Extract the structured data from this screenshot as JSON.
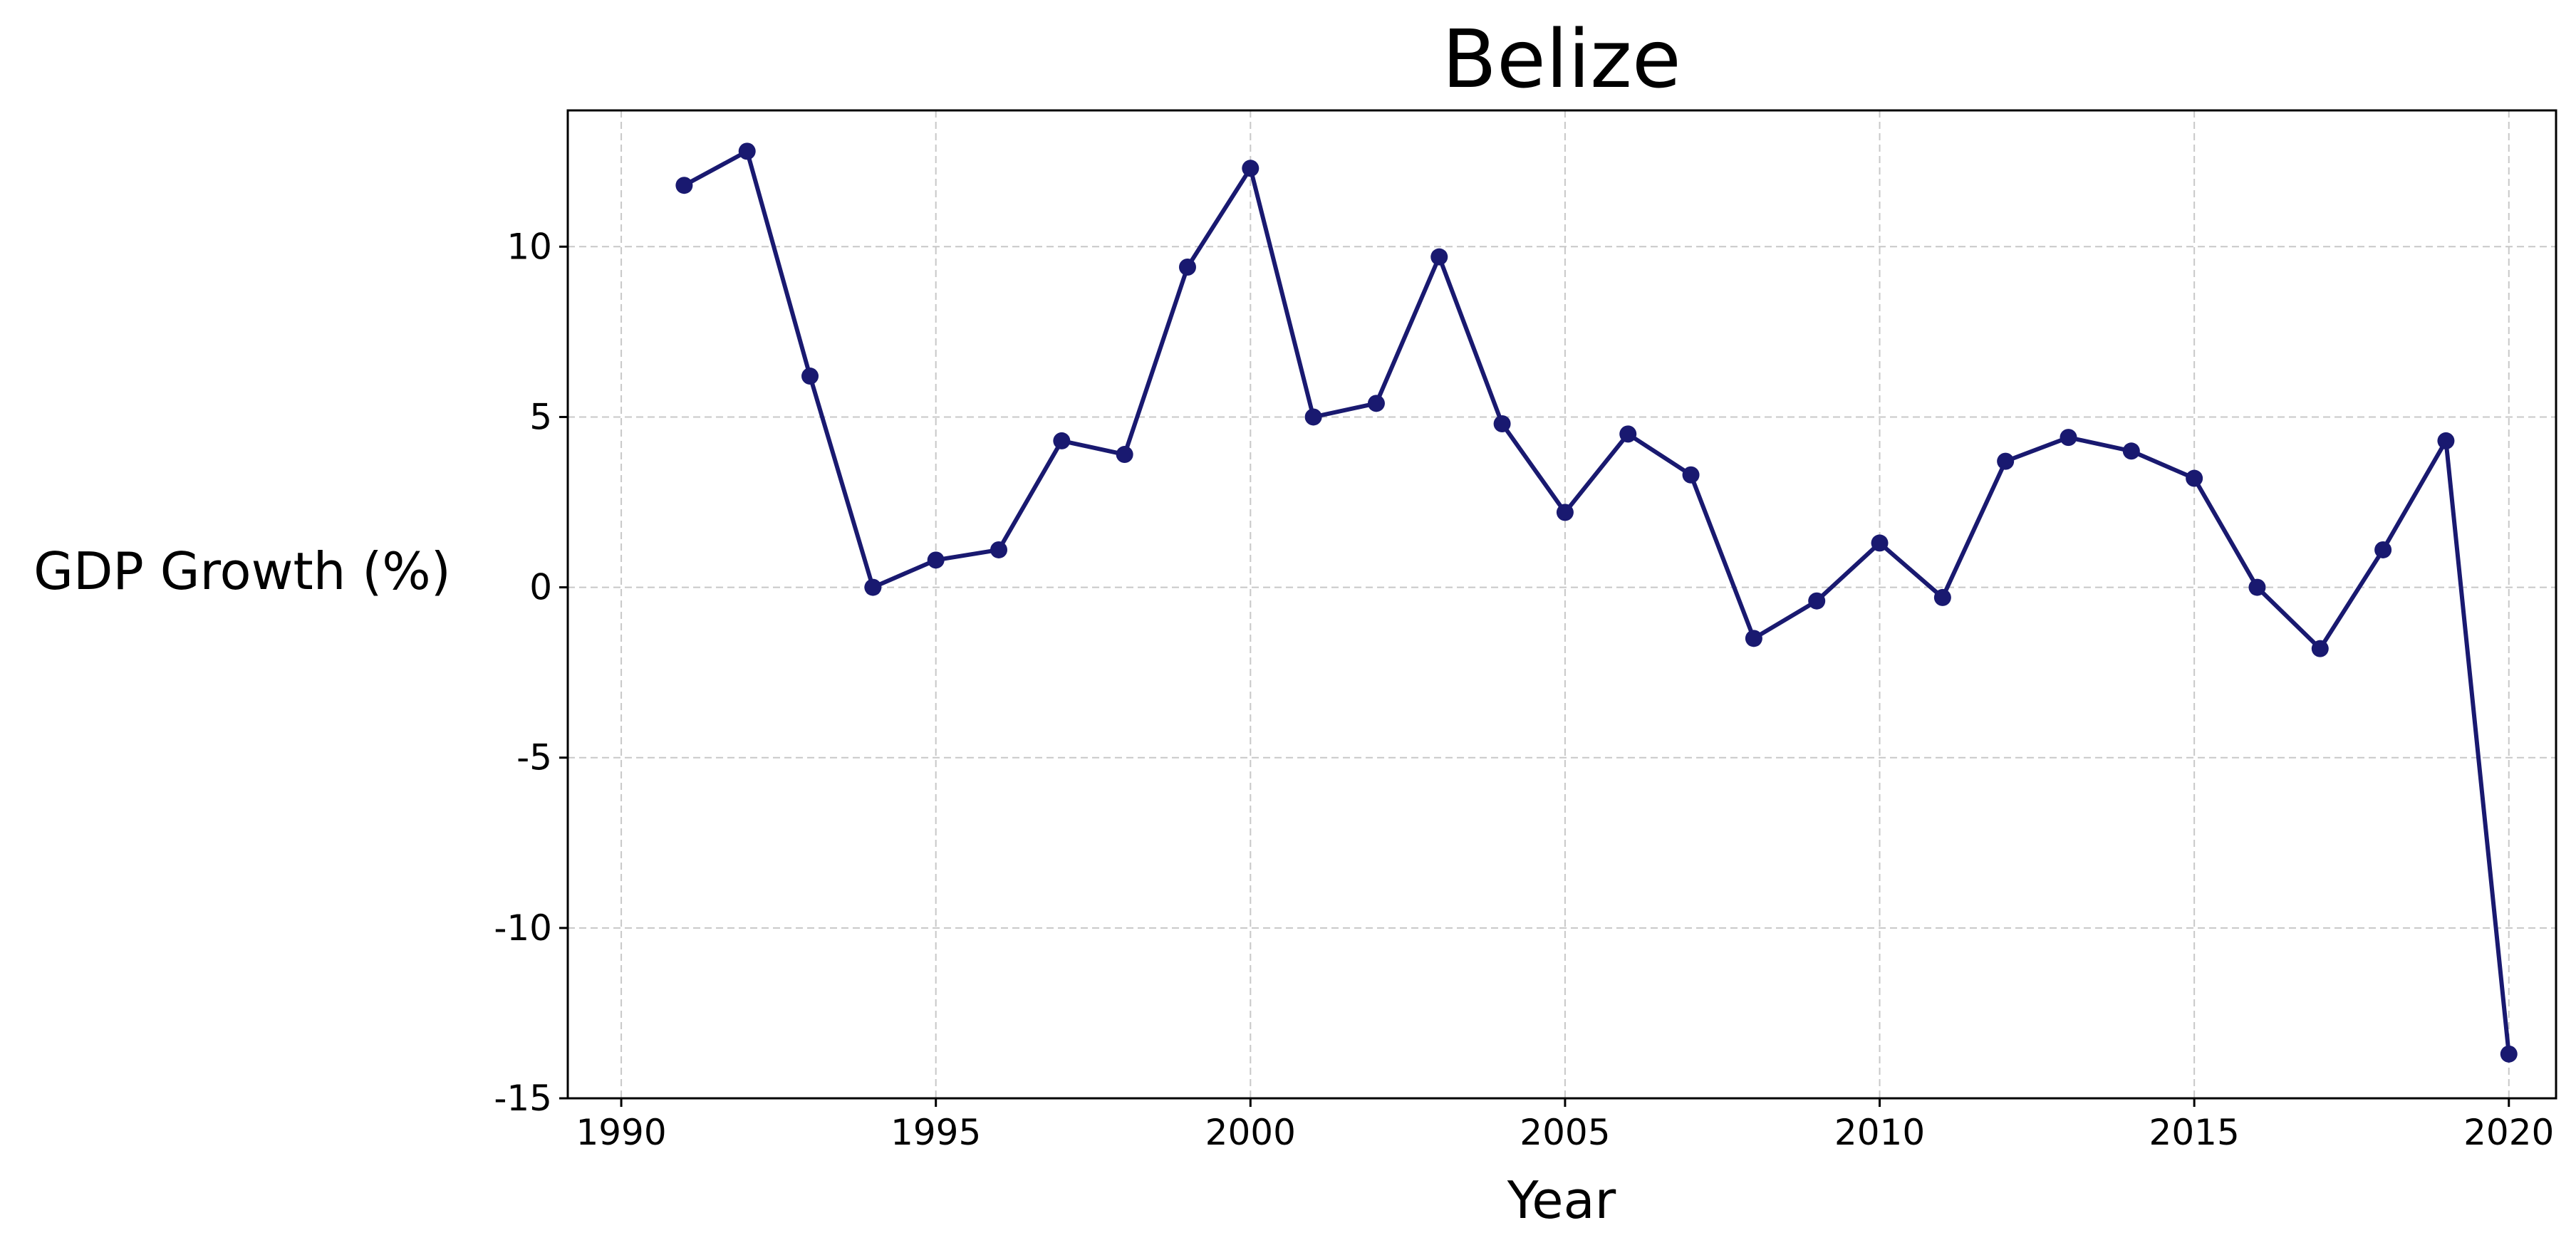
{
  "chart_data": {
    "type": "line",
    "title": "Belize",
    "xlabel": "Year",
    "ylabel": "GDP Growth (%)",
    "xlim": [
      1989.15,
      2020.75
    ],
    "ylim": [
      -15,
      14
    ],
    "x_ticks": [
      1990,
      1995,
      2000,
      2005,
      2010,
      2015,
      2020
    ],
    "y_ticks": [
      -15,
      -10,
      -5,
      0,
      5,
      10
    ],
    "grid": true,
    "legend": "none",
    "series": [
      {
        "color": "#191970",
        "x": [
          1991,
          1992,
          1993,
          1994,
          1995,
          1996,
          1997,
          1998,
          1999,
          2000,
          2001,
          2002,
          2003,
          2004,
          2005,
          2006,
          2007,
          2008,
          2009,
          2010,
          2011,
          2012,
          2013,
          2014,
          2015,
          2016,
          2017,
          2018,
          2019,
          2020
        ],
        "y": [
          11.8,
          12.8,
          6.2,
          0.0,
          0.8,
          1.1,
          4.3,
          3.9,
          9.4,
          12.3,
          5.0,
          5.4,
          9.7,
          4.8,
          2.2,
          4.5,
          3.3,
          -1.5,
          -0.4,
          1.3,
          -0.3,
          3.7,
          4.4,
          4.0,
          3.2,
          0.0,
          -1.8,
          1.1,
          4.3,
          -13.7
        ]
      }
    ]
  }
}
